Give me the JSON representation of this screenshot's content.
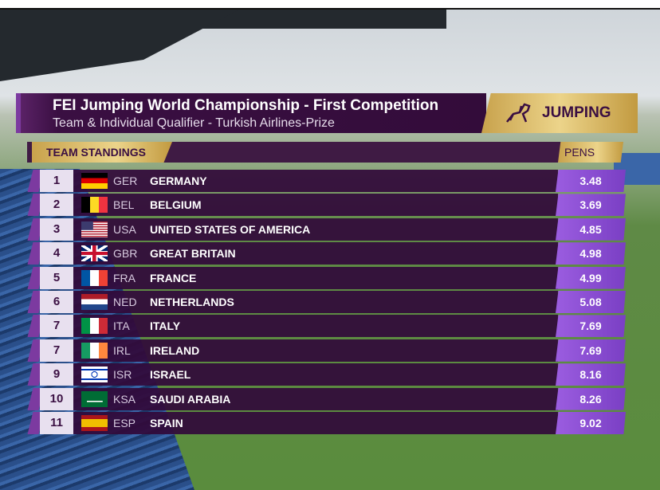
{
  "header": {
    "title": "FEI Jumping World Championship - First Competition",
    "subtitle": "Team & Individual Qualifier - Turkish Airlines-Prize",
    "badge": "JUMPING"
  },
  "table": {
    "header": "TEAM STANDINGS",
    "pens_header": "PENS",
    "rows": [
      [
        "1",
        "GER",
        "GERMANY",
        "3.48"
      ],
      [
        "2",
        "BEL",
        "BELGIUM",
        "3.69"
      ],
      [
        "3",
        "USA",
        "UNITED STATES OF AMERICA",
        "4.85"
      ],
      [
        "4",
        "GBR",
        "GREAT BRITAIN",
        "4.98"
      ],
      [
        "5",
        "FRA",
        "FRANCE",
        "4.99"
      ],
      [
        "6",
        "NED",
        "NETHERLANDS",
        "5.08"
      ],
      [
        "7",
        "ITA",
        "ITALY",
        "7.69"
      ],
      [
        "7",
        "IRL",
        "IRELAND",
        "7.69"
      ],
      [
        "9",
        "ISR",
        "ISRAEL",
        "8.16"
      ],
      [
        "10",
        "KSA",
        "SAUDI ARABIA",
        "8.26"
      ],
      [
        "11",
        "ESP",
        "SPAIN",
        "9.02"
      ]
    ]
  }
}
